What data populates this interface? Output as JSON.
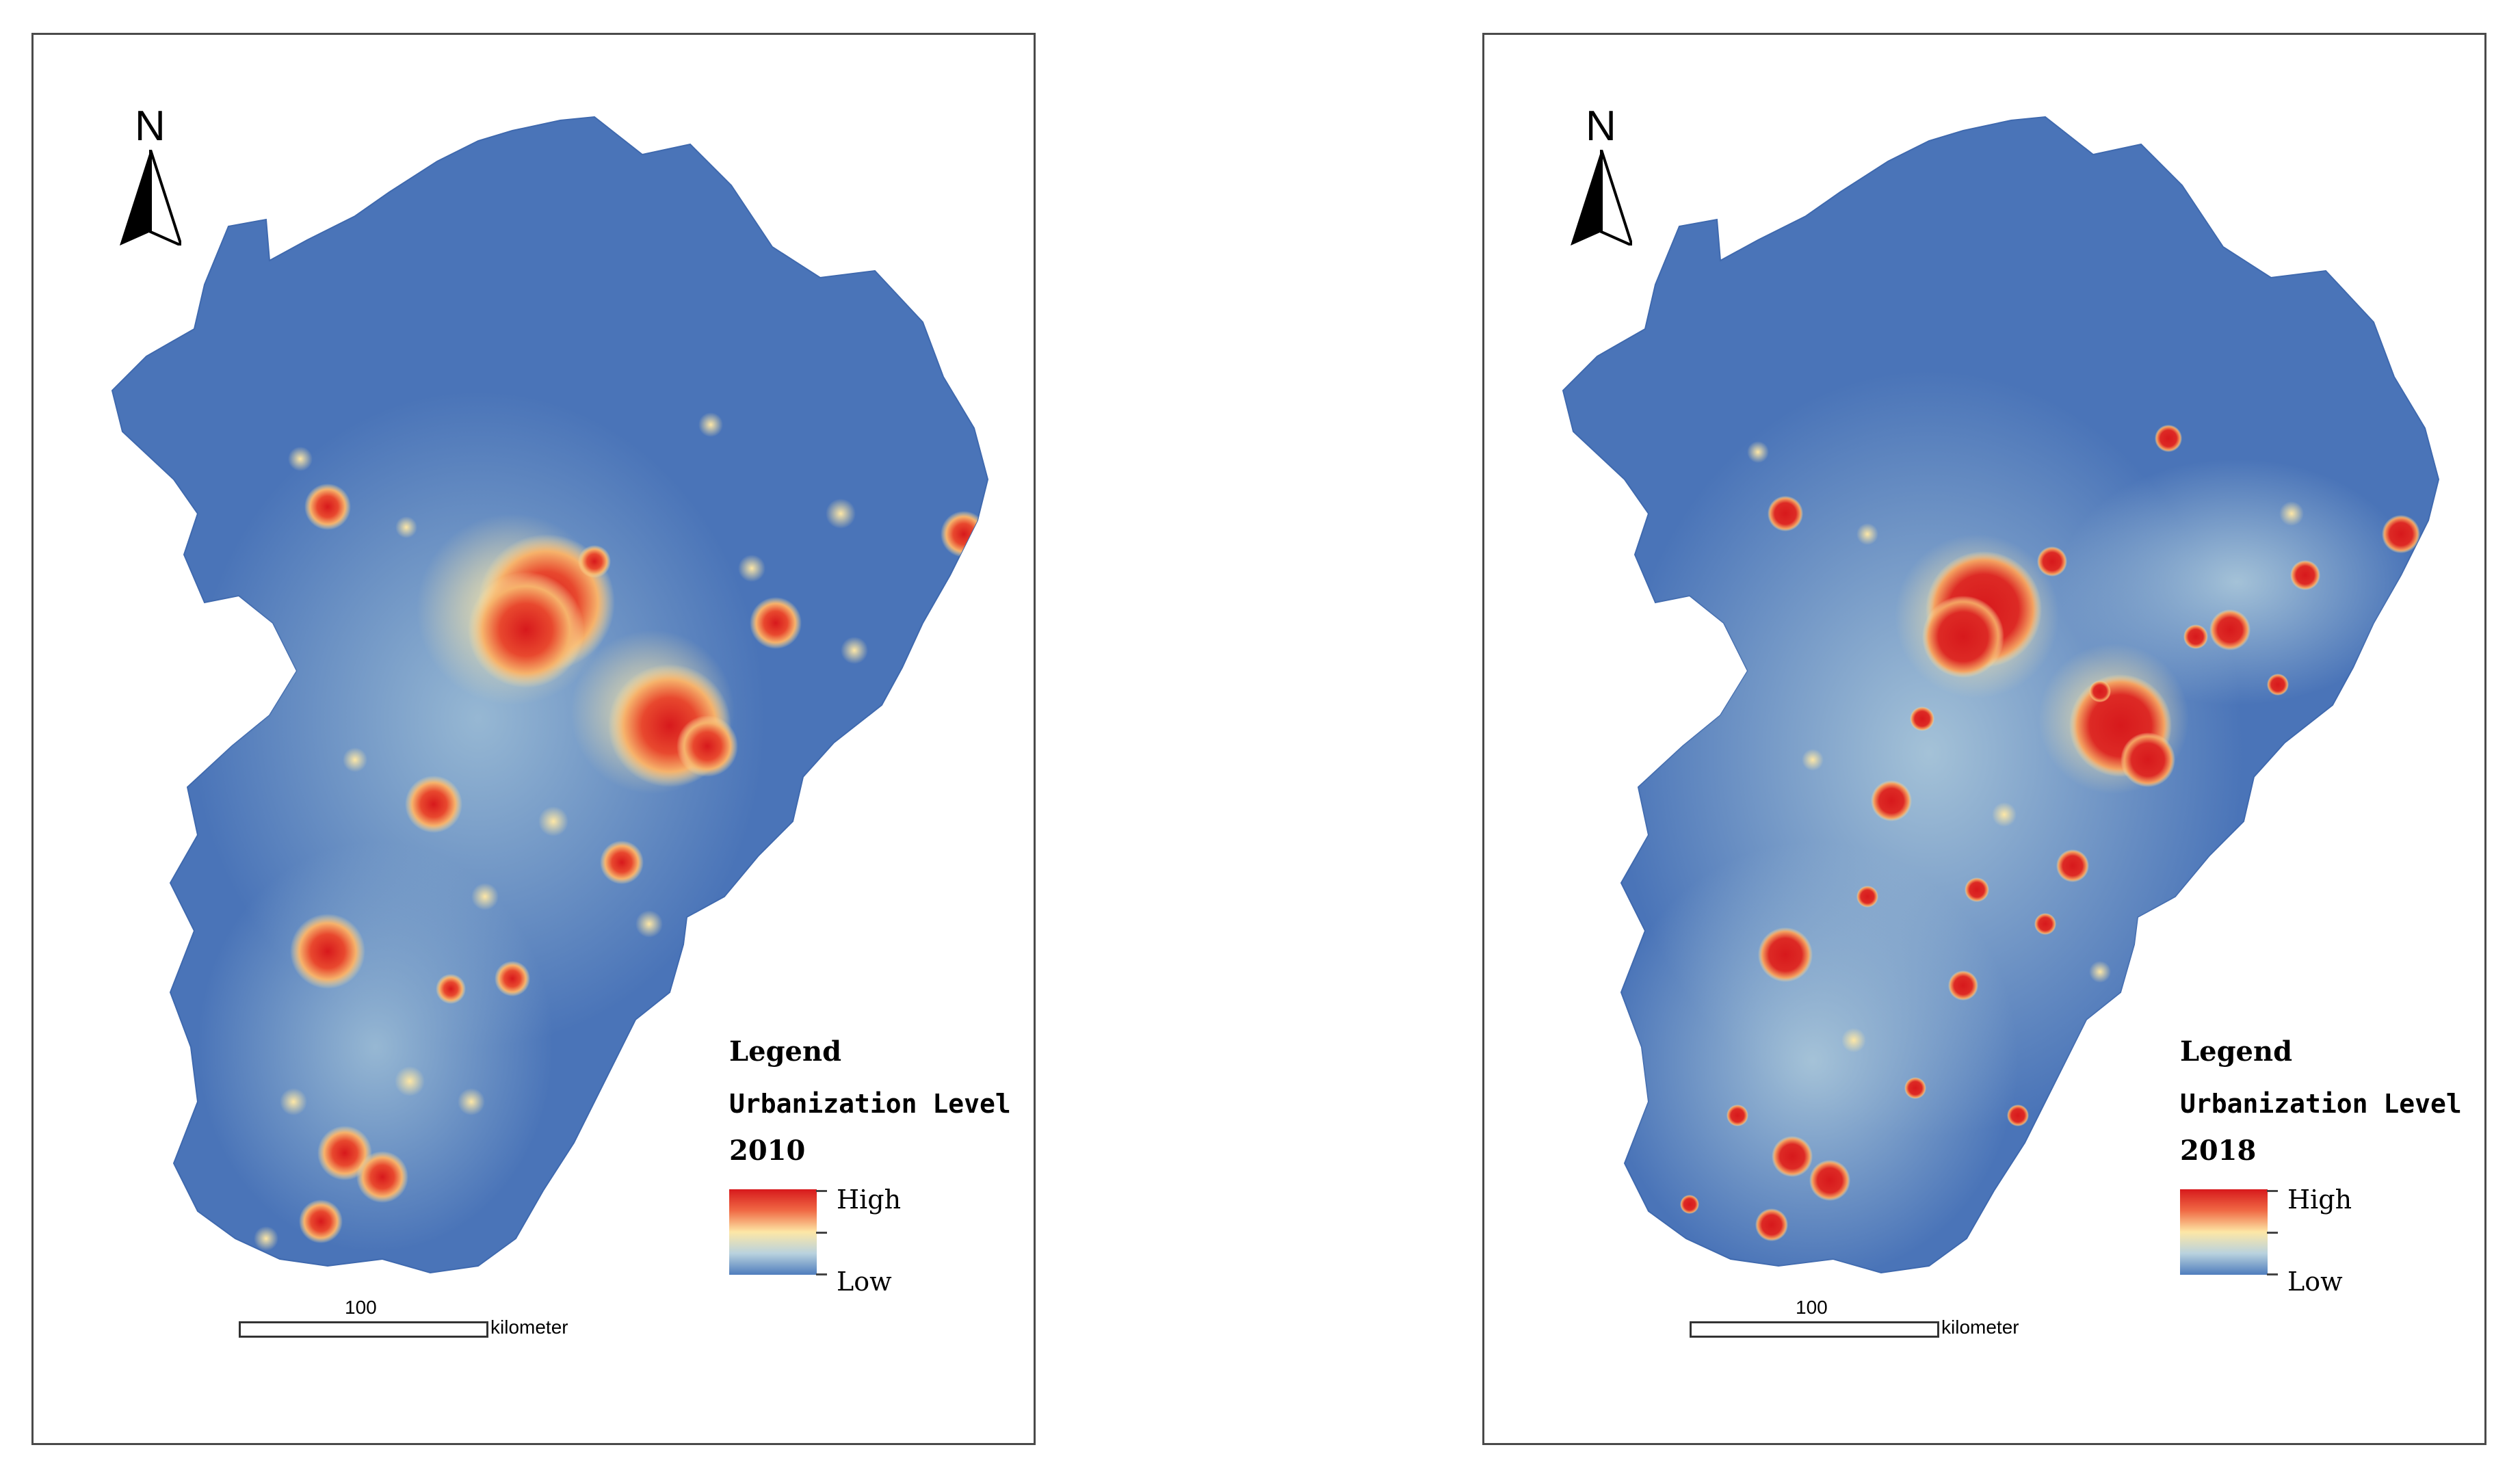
{
  "maps": [
    {
      "year": "2010",
      "legend": {
        "title": "Legend",
        "subtitle": "Urbanization Level",
        "high_label": "High",
        "low_label": "Low"
      },
      "north_label": "N",
      "scalebar": {
        "value": "100",
        "unit": "kilometer"
      }
    },
    {
      "year": "2018",
      "legend": {
        "title": "Legend",
        "subtitle": "Urbanization Level",
        "high_label": "High",
        "low_label": "Low"
      },
      "north_label": "N",
      "scalebar": {
        "value": "100",
        "unit": "kilometer"
      }
    }
  ],
  "colors": {
    "base": "#4a74b8",
    "low": "#4f7dbd",
    "mid": "#fde7a6",
    "high": "#d7191c"
  }
}
